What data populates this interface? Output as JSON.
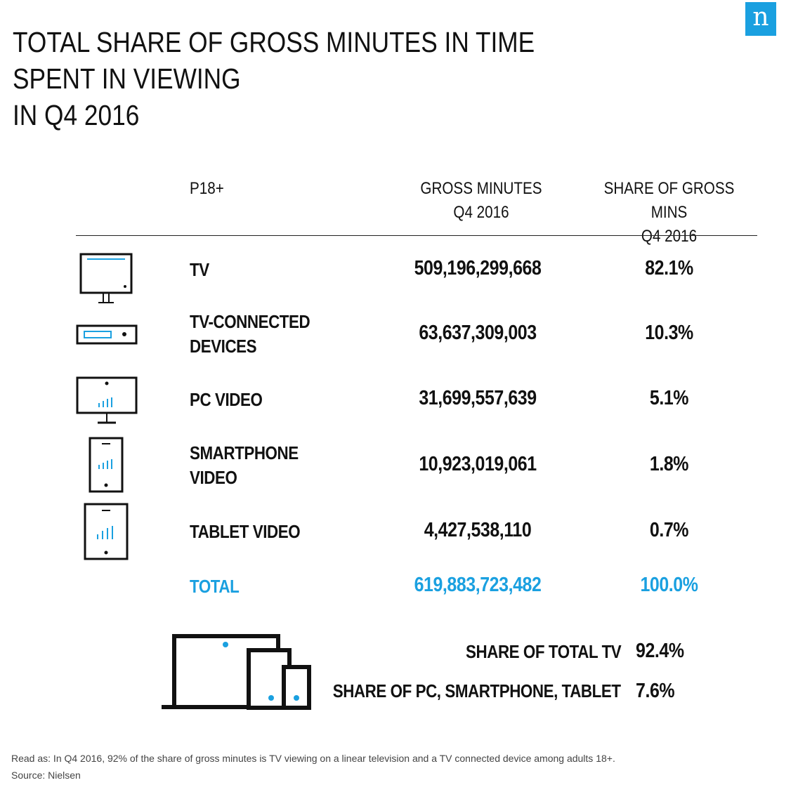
{
  "logo": "n",
  "title": [
    "TOTAL SHARE OF GROSS MINUTES IN TIME SPENT IN VIEWING",
    "IN Q4 2016"
  ],
  "chart_data": {
    "type": "table",
    "headers": {
      "segment": "P18+",
      "minutes": [
        "GROSS MINUTES",
        "Q4 2016"
      ],
      "share": [
        "SHARE OF GROSS MINS",
        "Q4 2016"
      ]
    },
    "rows": [
      {
        "label": [
          "TV"
        ],
        "minutes": "509,196,299,668",
        "share": "82.1%",
        "icon": "tv-icon"
      },
      {
        "label": [
          "TV-CONNECTED",
          "DEVICES"
        ],
        "minutes": "63,637,309,003",
        "share": "10.3%",
        "icon": "set-top-box-icon"
      },
      {
        "label": [
          "PC VIDEO"
        ],
        "minutes": "31,699,557,639",
        "share": "5.1%",
        "icon": "pc-monitor-icon"
      },
      {
        "label": [
          "SMARTPHONE",
          "VIDEO"
        ],
        "minutes": "10,923,019,061",
        "share": "1.8%",
        "icon": "smartphone-icon"
      },
      {
        "label": [
          "TABLET VIDEO"
        ],
        "minutes": "4,427,538,110",
        "share": "0.7%",
        "icon": "tablet-icon"
      }
    ],
    "total": {
      "label": "TOTAL",
      "minutes": "619,883,723,482",
      "share": "100.0%"
    },
    "summary": [
      {
        "label": "SHARE OF TOTAL TV",
        "value": "92.4%"
      },
      {
        "label": "SHARE OF PC, SMARTPHONE, TABLET",
        "value": "7.6%"
      }
    ]
  },
  "colors": {
    "accent": "#1aa0e0",
    "text": "#111111"
  },
  "footnote": {
    "read_as": "Read as: In Q4 2016, 92% of the share of gross minutes is TV viewing on a linear television and a TV connected device among adults 18+.",
    "source": "Source: Nielsen"
  }
}
